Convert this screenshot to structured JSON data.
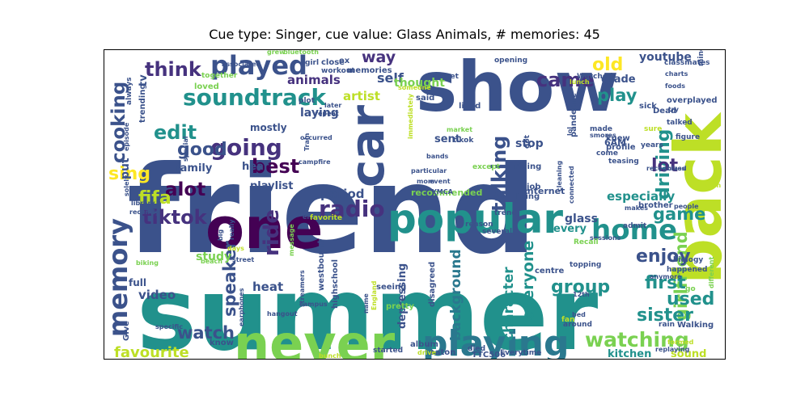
{
  "title": "Cue type: Singer, cue value: Glass Animals, # memories: 45",
  "palette": {
    "background": "#ffffff",
    "darkPurple": "#440154",
    "indigo": "#46327e",
    "blue": "#365c8d",
    "teal": "#277f8e",
    "green": "#1fa187",
    "lightGreen": "#4ac16d",
    "lime": "#a0da39",
    "yellow": "#fde725"
  },
  "words": [
    {
      "text": "summer",
      "color": "#21918c"
    },
    {
      "text": "friend",
      "color": "#3b528b"
    },
    {
      "text": "show",
      "color": "#3b528b"
    },
    {
      "text": "one",
      "color": "#440154"
    },
    {
      "text": "never",
      "color": "#7ad151"
    },
    {
      "text": "back",
      "color": "#bddf26"
    },
    {
      "text": "car",
      "color": "#3b528b"
    },
    {
      "text": "popular",
      "color": "#21918c"
    },
    {
      "text": "playing",
      "color": "#2a788e"
    },
    {
      "text": "played",
      "color": "#3b528b"
    },
    {
      "text": "memory",
      "color": "#3b528b"
    },
    {
      "text": "home",
      "color": "#21918c"
    },
    {
      "text": "soundtrack",
      "color": "#21918c"
    },
    {
      "text": "radio",
      "color": "#46327e"
    },
    {
      "text": "tiktok",
      "color": "#46327e"
    },
    {
      "text": "watching",
      "color": "#7ad151"
    },
    {
      "text": "ride",
      "color": "#46327e"
    },
    {
      "text": "going",
      "color": "#46327e"
    },
    {
      "text": "best",
      "color": "#440154"
    },
    {
      "text": "talking",
      "color": "#3b528b"
    },
    {
      "text": "think",
      "color": "#46327e"
    },
    {
      "text": "came",
      "color": "#46327e"
    },
    {
      "text": "old",
      "color": "#fde725"
    },
    {
      "text": "edit",
      "color": "#21918c"
    },
    {
      "text": "good",
      "color": "#3b528b"
    },
    {
      "text": "alot",
      "color": "#440154"
    },
    {
      "text": "cooking",
      "color": "#3b528b"
    },
    {
      "text": "fifa",
      "color": "#bddf26"
    },
    {
      "text": "sing",
      "color": "#fde725"
    },
    {
      "text": "driving",
      "color": "#21918c"
    },
    {
      "text": "lot",
      "color": "#46327e"
    },
    {
      "text": "girlfriend",
      "color": "#7ad151"
    },
    {
      "text": "group",
      "color": "#21918c"
    },
    {
      "text": "sister",
      "color": "#21918c"
    },
    {
      "text": "used",
      "color": "#21918c"
    },
    {
      "text": "first",
      "color": "#21918c"
    },
    {
      "text": "enjoy",
      "color": "#3b528b"
    },
    {
      "text": "game",
      "color": "#21918c"
    },
    {
      "text": "play",
      "color": "#21918c"
    },
    {
      "text": "speaker",
      "color": "#3b528b"
    },
    {
      "text": "watch",
      "color": "#3b528b"
    },
    {
      "text": "favourite",
      "color": "#bddf26"
    },
    {
      "text": "everyone",
      "color": "#21918c"
    },
    {
      "text": "character",
      "color": "#21918c"
    },
    {
      "text": "background",
      "color": "#2a788e"
    },
    {
      "text": "way",
      "color": "#46327e"
    },
    {
      "text": "self",
      "color": "#3b528b"
    },
    {
      "text": "artist",
      "color": "#bddf26"
    },
    {
      "text": "thought",
      "color": "#7ad151"
    },
    {
      "text": "animals",
      "color": "#46327e"
    },
    {
      "text": "period",
      "color": "#3b528b"
    },
    {
      "text": "heat",
      "color": "#3b528b"
    },
    {
      "text": "video",
      "color": "#3b528b"
    },
    {
      "text": "study",
      "color": "#7ad151"
    },
    {
      "text": "laying",
      "color": "#3b528b"
    },
    {
      "text": "especially",
      "color": "#21918c"
    },
    {
      "text": "youtube",
      "color": "#3b528b"
    },
    {
      "text": "grade",
      "color": "#3b528b"
    },
    {
      "text": "kitchen",
      "color": "#21918c"
    },
    {
      "text": "sound",
      "color": "#bddf26"
    },
    {
      "text": "glass",
      "color": "#3b528b"
    },
    {
      "text": "family",
      "color": "#3b528b"
    },
    {
      "text": "playlist",
      "color": "#3b528b"
    },
    {
      "text": "put",
      "color": "#3b528b"
    },
    {
      "text": "stop",
      "color": "#3b528b"
    },
    {
      "text": "sent",
      "color": "#3b528b"
    },
    {
      "text": "every",
      "color": "#21918c"
    },
    {
      "text": "hear",
      "color": "#3b528b"
    },
    {
      "text": "depressing",
      "color": "#3b528b"
    },
    {
      "text": "mostly",
      "color": "#3b528b"
    },
    {
      "text": "full",
      "color": "#3b528b"
    },
    {
      "text": "tv",
      "color": "#3b528b"
    },
    {
      "text": "memories",
      "color": "#3b528b"
    },
    {
      "text": "recommended",
      "color": "#7ad151"
    },
    {
      "text": "internet",
      "color": "#3b528b"
    },
    {
      "text": "6AM",
      "color": "#3b528b"
    },
    {
      "text": "brother",
      "color": "#3b528b"
    },
    {
      "text": "minecraft",
      "color": "#3b528b"
    },
    {
      "text": "classmates",
      "color": "#3b528b"
    },
    {
      "text": "overplayed",
      "color": "#3b528b"
    },
    {
      "text": "Dead",
      "color": "#3b528b"
    },
    {
      "text": "sick",
      "color": "#3b528b"
    },
    {
      "text": "knew",
      "color": "#3b528b"
    },
    {
      "text": "profile",
      "color": "#3b528b"
    },
    {
      "text": "riding",
      "color": "#3b528b"
    },
    {
      "text": "liking",
      "color": "#3b528b"
    },
    {
      "text": "job",
      "color": "#3b528b"
    },
    {
      "text": "pandemic",
      "color": "#3b528b"
    },
    {
      "text": "centre",
      "color": "#3b528b"
    },
    {
      "text": "album",
      "color": "#3b528b"
    },
    {
      "text": "eaton",
      "color": "#3b528b"
    },
    {
      "text": "TTC506",
      "color": "#3b528b"
    },
    {
      "text": "Everytime",
      "color": "#3b528b"
    },
    {
      "text": "Walking",
      "color": "#3b528b"
    },
    {
      "text": "know",
      "color": "#3b528b"
    },
    {
      "text": "Give",
      "color": "#3b528b"
    },
    {
      "text": "pretty",
      "color": "#7ad151"
    },
    {
      "text": "seeing",
      "color": "#3b528b"
    },
    {
      "text": "disagreed",
      "color": "#3b528b"
    },
    {
      "text": "highschool",
      "color": "#3b528b"
    },
    {
      "text": "westbound",
      "color": "#3b528b"
    },
    {
      "text": "trending",
      "color": "#3b528b"
    },
    {
      "text": "loved",
      "color": "#7ad151"
    },
    {
      "text": "together",
      "color": "#7ad151"
    },
    {
      "text": "said",
      "color": "#3b528b"
    },
    {
      "text": "lived",
      "color": "#3b528b"
    },
    {
      "text": "plot",
      "color": "#3b528b"
    },
    {
      "text": "later",
      "color": "#3b528b"
    },
    {
      "text": "repeat",
      "color": "#3b528b"
    },
    {
      "text": "close",
      "color": "#3b528b"
    },
    {
      "text": "workout",
      "color": "#3b528b"
    },
    {
      "text": "girl",
      "color": "#3b528b"
    },
    {
      "text": "ex",
      "color": "#3b528b"
    },
    {
      "text": "bluetooth",
      "color": "#7ad151"
    },
    {
      "text": "grew",
      "color": "#7ad151"
    },
    {
      "text": "associated",
      "color": "#3b528b"
    },
    {
      "text": "always",
      "color": "#3b528b"
    },
    {
      "text": "opening",
      "color": "#3b528b"
    },
    {
      "text": "Watched",
      "color": "#3b528b"
    },
    {
      "text": "lunch",
      "color": "#bddf26"
    },
    {
      "text": "meet",
      "color": "#3b528b"
    },
    {
      "text": "someone",
      "color": "#bddf26"
    },
    {
      "text": "charts",
      "color": "#3b528b"
    },
    {
      "text": "foods",
      "color": "#3b528b"
    },
    {
      "text": "try",
      "color": "#3b528b"
    },
    {
      "text": "sure",
      "color": "#bddf26"
    },
    {
      "text": "figure",
      "color": "#3b528b"
    },
    {
      "text": "talked",
      "color": "#3b528b"
    },
    {
      "text": "years",
      "color": "#3b528b"
    },
    {
      "text": "made",
      "color": "#3b528b"
    },
    {
      "text": "smores",
      "color": "#3b528b"
    },
    {
      "text": "come",
      "color": "#3b528b"
    },
    {
      "text": "teasing",
      "color": "#3b528b"
    },
    {
      "text": "recognized",
      "color": "#3b528b"
    },
    {
      "text": "class",
      "color": "#3b528b"
    },
    {
      "text": "main",
      "color": "#bddf26"
    },
    {
      "text": "people",
      "color": "#3b528b"
    },
    {
      "text": "sessions",
      "color": "#3b528b"
    },
    {
      "text": "makes",
      "color": "#3b528b"
    },
    {
      "text": "admit",
      "color": "#3b528b"
    },
    {
      "text": "biology",
      "color": "#3b528b"
    },
    {
      "text": "happened",
      "color": "#3b528b"
    },
    {
      "text": "anymore",
      "color": "#3b528b"
    },
    {
      "text": "different",
      "color": "#7ad151"
    },
    {
      "text": "go",
      "color": "#7ad151"
    },
    {
      "text": "rain",
      "color": "#3b528b"
    },
    {
      "text": "formed",
      "color": "#bddf26"
    },
    {
      "text": "replaying",
      "color": "#3b528b"
    },
    {
      "text": "12th",
      "color": "#3b528b"
    },
    {
      "text": "bed",
      "color": "#3b528b"
    },
    {
      "text": "around",
      "color": "#3b528b"
    },
    {
      "text": "fan",
      "color": "#bddf26"
    },
    {
      "text": "topping",
      "color": "#3b528b"
    },
    {
      "text": "Recall",
      "color": "#7ad151"
    },
    {
      "text": "trend",
      "color": "#3b528b"
    },
    {
      "text": "reason",
      "color": "#3b528b"
    },
    {
      "text": "several",
      "color": "#3b528b"
    },
    {
      "text": "except",
      "color": "#7ad151"
    },
    {
      "text": "tikok",
      "color": "#3b528b"
    },
    {
      "text": "market",
      "color": "#7ad151"
    },
    {
      "text": "event",
      "color": "#3b528b"
    },
    {
      "text": "mom",
      "color": "#3b528b"
    },
    {
      "text": "YMCA",
      "color": "#3b528b"
    },
    {
      "text": "particular",
      "color": "#3b528b"
    },
    {
      "text": "bands",
      "color": "#3b528b"
    },
    {
      "text": "immediately",
      "color": "#bddf26"
    },
    {
      "text": "Train",
      "color": "#3b528b"
    },
    {
      "text": "campfire",
      "color": "#3b528b"
    },
    {
      "text": "occurred",
      "color": "#3b528b"
    },
    {
      "text": "special",
      "color": "#3b528b"
    },
    {
      "text": "episode",
      "color": "#3b528b"
    },
    {
      "text": "solely",
      "color": "#3b528b"
    },
    {
      "text": "library",
      "color": "#3b528b"
    },
    {
      "text": "recently",
      "color": "#3b528b"
    },
    {
      "text": "big",
      "color": "#3b528b"
    },
    {
      "text": "really",
      "color": "#3b528b"
    },
    {
      "text": "end",
      "color": "#3b528b"
    },
    {
      "text": "favorite",
      "color": "#bddf26"
    },
    {
      "text": "message",
      "color": "#7ad151"
    },
    {
      "text": "days",
      "color": "#bddf26"
    },
    {
      "text": "biking",
      "color": "#7ad151"
    },
    {
      "text": "street",
      "color": "#3b528b"
    },
    {
      "text": "beach",
      "color": "#7ad151"
    },
    {
      "text": "streamers",
      "color": "#3b528b"
    },
    {
      "text": "campus",
      "color": "#3b528b"
    },
    {
      "text": "hangout",
      "color": "#3b528b"
    },
    {
      "text": "earphones",
      "color": "#3b528b"
    },
    {
      "text": "specific",
      "color": "#3b528b"
    },
    {
      "text": "bunch",
      "color": "#bddf26"
    },
    {
      "text": "started",
      "color": "#3b528b"
    },
    {
      "text": "drive",
      "color": "#bddf26"
    },
    {
      "text": "died",
      "color": "#3b528b"
    },
    {
      "text": "name",
      "color": "#3b528b"
    },
    {
      "text": "England",
      "color": "#bddf26"
    },
    {
      "text": "cleaning",
      "color": "#3b528b"
    },
    {
      "text": "connected",
      "color": "#3b528b"
    },
    {
      "text": "lol",
      "color": "#3b528b"
    },
    {
      "text": "got",
      "color": "#3b528b"
    }
  ]
}
